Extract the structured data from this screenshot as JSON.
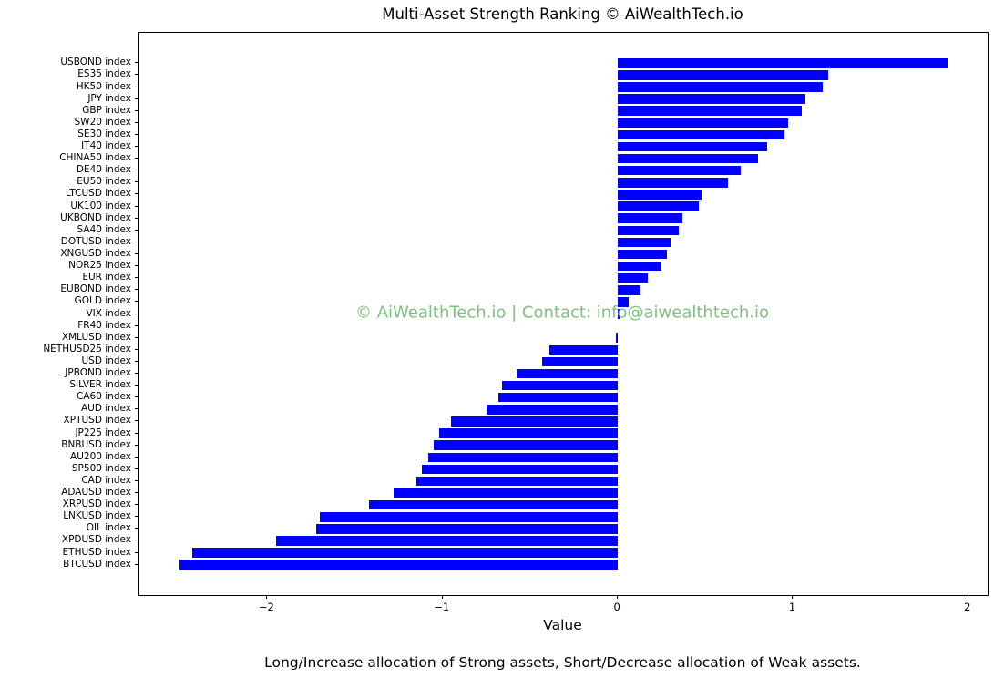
{
  "footer_text": "Long/Increase allocation of Strong assets, Short/Decrease allocation of Weak assets.",
  "chart_data": {
    "type": "bar",
    "orientation": "horizontal",
    "title": "Multi-Asset Strength Ranking © AiWealthTech.io",
    "xlabel": "Value",
    "watermark": "© AiWealthTech.io | Contact: info@aiwealthtech.io",
    "watermark_color": "#7fbf7f",
    "bar_color": "#0000ff",
    "grid": false,
    "legend": false,
    "xlim": [
      -2.73,
      2.11
    ],
    "xticks": [
      -2,
      -1,
      0,
      1,
      2
    ],
    "xtick_labels": [
      "−2",
      "−1",
      "0",
      "1",
      "2"
    ],
    "categories": [
      "USBOND index",
      "ES35 index",
      "HK50 index",
      "JPY index",
      "GBP index",
      "SW20 index",
      "SE30 index",
      "IT40 index",
      "CHINA50 index",
      "DE40 index",
      "EU50 index",
      "LTCUSD index",
      "UK100 index",
      "UKBOND index",
      "SA40 index",
      "DOTUSD index",
      "XNGUSD index",
      "NOR25 index",
      "EUR index",
      "EUBOND index",
      "GOLD index",
      "VIX index",
      "FR40 index",
      "XMLUSD index",
      "NETHUSD25 index",
      "USD index",
      "JPBOND index",
      "SILVER index",
      "CA60 index",
      "AUD index",
      "XPTUSD index",
      "JP225 index",
      "BNBUSD index",
      "AU200 index",
      "SP500 index",
      "CAD index",
      "ADAUSD index",
      "XRPUSD index",
      "LNKUSD index",
      "OIL index",
      "XPDUSD index",
      "ETHUSD index",
      "BTCUSD index"
    ],
    "values": [
      1.88,
      1.2,
      1.17,
      1.07,
      1.05,
      0.97,
      0.95,
      0.85,
      0.8,
      0.7,
      0.63,
      0.48,
      0.46,
      0.37,
      0.35,
      0.3,
      0.28,
      0.25,
      0.17,
      0.13,
      0.06,
      0.01,
      0.0,
      -0.01,
      -0.39,
      -0.43,
      -0.58,
      -0.66,
      -0.68,
      -0.75,
      -0.95,
      -1.02,
      -1.05,
      -1.08,
      -1.12,
      -1.15,
      -1.28,
      -1.42,
      -1.7,
      -1.72,
      -1.95,
      -2.43,
      -2.5
    ]
  }
}
